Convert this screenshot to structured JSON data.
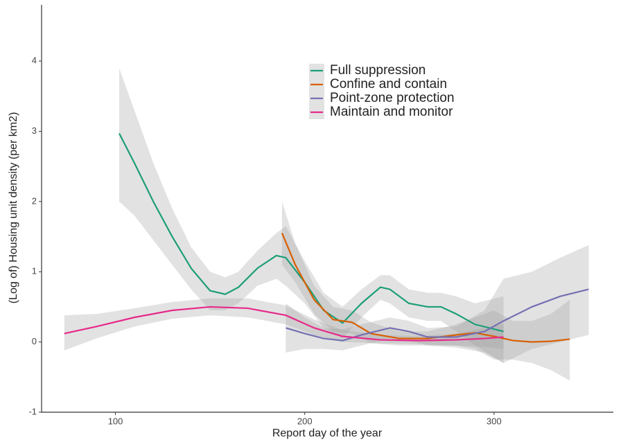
{
  "chart_data": {
    "type": "line",
    "x_label": "Report day of the year",
    "y_label": "(Log of) Housing unit density (per km2)",
    "xlim": [
      61,
      363
    ],
    "xticks": [
      100,
      200,
      300
    ],
    "ylim": [
      -1,
      4.8
    ],
    "yticks": [
      -1,
      0,
      1,
      2,
      3,
      4
    ],
    "band_color": "#a0a0a0",
    "series": [
      {
        "name": "Full suppression",
        "color": "#1b9e77",
        "x": [
          102,
          110,
          120,
          130,
          140,
          150,
          158,
          165,
          175,
          185,
          190,
          200,
          210,
          220,
          230,
          240,
          245,
          255,
          265,
          272,
          280,
          290,
          305
        ],
        "values": [
          2.97,
          2.55,
          2.0,
          1.5,
          1.05,
          0.73,
          0.68,
          0.78,
          1.05,
          1.23,
          1.2,
          0.85,
          0.45,
          0.27,
          0.55,
          0.78,
          0.75,
          0.55,
          0.5,
          0.5,
          0.4,
          0.25,
          0.15
        ],
        "lower": [
          2.0,
          1.8,
          1.45,
          1.1,
          0.75,
          0.45,
          0.45,
          0.55,
          0.8,
          0.9,
          0.8,
          0.55,
          0.2,
          0.05,
          0.35,
          0.6,
          0.55,
          0.35,
          0.3,
          0.3,
          0.15,
          -0.05,
          -0.3
        ],
        "upper": [
          3.9,
          3.3,
          2.55,
          1.9,
          1.35,
          1.0,
          0.92,
          1.0,
          1.3,
          1.55,
          1.65,
          1.15,
          0.7,
          0.5,
          0.75,
          0.95,
          0.95,
          0.75,
          0.7,
          0.7,
          0.65,
          0.55,
          0.65
        ]
      },
      {
        "name": "Confine and contain",
        "color": "#d95f02",
        "x": [
          188,
          195,
          205,
          215,
          225,
          235,
          250,
          265,
          280,
          290,
          300,
          310,
          320,
          330,
          340
        ],
        "values": [
          1.55,
          1.1,
          0.6,
          0.32,
          0.28,
          0.12,
          0.05,
          0.05,
          0.1,
          0.13,
          0.08,
          0.02,
          0,
          0.01,
          0.04
        ],
        "lower": [
          1.1,
          0.85,
          0.4,
          0.15,
          0.12,
          -0.02,
          -0.05,
          -0.05,
          -0.05,
          -0.1,
          -0.25,
          -0.25,
          -0.3,
          -0.4,
          -0.55
        ],
        "upper": [
          2.0,
          1.4,
          0.8,
          0.5,
          0.45,
          0.28,
          0.15,
          0.15,
          0.25,
          0.35,
          0.45,
          0.3,
          0.3,
          0.4,
          0.6
        ]
      },
      {
        "name": "Point-zone protection",
        "color": "#7570b3",
        "x": [
          190,
          200,
          210,
          220,
          230,
          245,
          255,
          265,
          280,
          295,
          305,
          320,
          335,
          350
        ],
        "values": [
          0.2,
          0.12,
          0.05,
          0.02,
          0.1,
          0.2,
          0.15,
          0.07,
          0.07,
          0.15,
          0.3,
          0.5,
          0.65,
          0.75
        ],
        "lower": [
          -0.15,
          -0.1,
          -0.1,
          -0.12,
          -0.05,
          0.05,
          0.02,
          -0.05,
          -0.08,
          -0.15,
          -0.3,
          -0.1,
          0.0,
          0.1
        ],
        "upper": [
          0.55,
          0.35,
          0.2,
          0.18,
          0.25,
          0.35,
          0.3,
          0.2,
          0.22,
          0.45,
          0.9,
          1.0,
          1.2,
          1.38
        ]
      },
      {
        "name": "Maintain and monitor",
        "color": "#e7298a",
        "x": [
          73,
          90,
          110,
          130,
          150,
          170,
          190,
          205,
          220,
          240,
          260,
          280,
          295,
          305
        ],
        "values": [
          0.12,
          0.22,
          0.35,
          0.45,
          0.5,
          0.48,
          0.38,
          0.2,
          0.08,
          0.03,
          0.02,
          0.03,
          0.05,
          0.07
        ],
        "lower": [
          -0.12,
          0.05,
          0.22,
          0.33,
          0.38,
          0.35,
          0.25,
          0.1,
          0.0,
          -0.02,
          -0.03,
          -0.05,
          -0.07,
          -0.1
        ],
        "upper": [
          0.38,
          0.4,
          0.48,
          0.57,
          0.62,
          0.62,
          0.52,
          0.32,
          0.17,
          0.1,
          0.08,
          0.12,
          0.2,
          0.25
        ]
      }
    ]
  }
}
